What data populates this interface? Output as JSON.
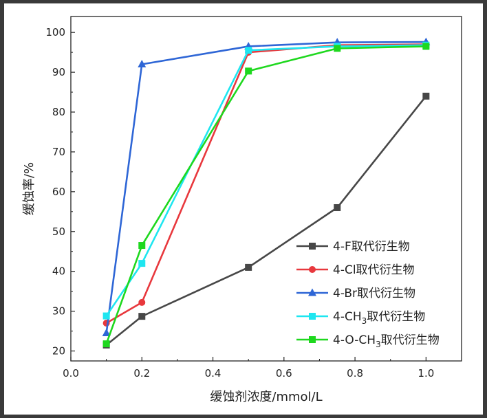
{
  "chart_data": {
    "type": "line",
    "xlabel": "缓蚀剂浓度/mmol/L",
    "ylabel": "缓蚀率/%",
    "xlim": [
      0.0,
      1.1
    ],
    "ylim": [
      17.5,
      104
    ],
    "xticks": [
      0.0,
      0.2,
      0.4,
      0.6,
      0.8,
      1.0
    ],
    "xtick_labels": [
      "0.0",
      "0.2",
      "0.4",
      "0.6",
      "0.8",
      "1.0"
    ],
    "yticks": [
      20,
      30,
      40,
      50,
      60,
      70,
      80,
      90,
      100
    ],
    "ytick_labels": [
      "20",
      "30",
      "40",
      "50",
      "60",
      "70",
      "80",
      "90",
      "100"
    ],
    "grid": false,
    "legend_position": "bottom-right",
    "series": [
      {
        "name": "4-F取代衍生物",
        "legend_parts": [
          "4-F取代衍生物"
        ],
        "color": "#474747",
        "marker": "square",
        "x": [
          0.1,
          0.2,
          0.5,
          0.75,
          1.0
        ],
        "y": [
          21.5,
          28.7,
          41.0,
          56.0,
          84.0
        ]
      },
      {
        "name": "4-Cl取代衍生物",
        "legend_parts": [
          "4-Cl取代衍生物"
        ],
        "color": "#e8383d",
        "marker": "circle",
        "x": [
          0.1,
          0.2,
          0.5,
          0.75,
          1.0
        ],
        "y": [
          27.0,
          32.2,
          95.0,
          96.8,
          97.0
        ]
      },
      {
        "name": "4-Br取代衍生物",
        "legend_parts": [
          "4-Br取代衍生物"
        ],
        "color": "#2e66d6",
        "marker": "triangle",
        "x": [
          0.1,
          0.2,
          0.5,
          0.75,
          1.0
        ],
        "y": [
          24.5,
          92.0,
          96.5,
          97.5,
          97.6
        ]
      },
      {
        "name": "4-CH3取代衍生物",
        "legend_parts": [
          "4-CH",
          "3",
          "取代衍生物"
        ],
        "color": "#1ee6f0",
        "marker": "square",
        "x": [
          0.1,
          0.2,
          0.5,
          0.75,
          1.0
        ],
        "y": [
          28.8,
          42.0,
          95.5,
          96.5,
          96.8
        ]
      },
      {
        "name": "4-O-CH3取代衍生物",
        "legend_parts": [
          "4-O-CH",
          "3",
          "取代衍生物"
        ],
        "color": "#1ed81e",
        "marker": "square",
        "x": [
          0.1,
          0.2,
          0.5,
          0.75,
          1.0
        ],
        "y": [
          21.8,
          46.5,
          90.3,
          96.0,
          96.5
        ]
      }
    ]
  }
}
